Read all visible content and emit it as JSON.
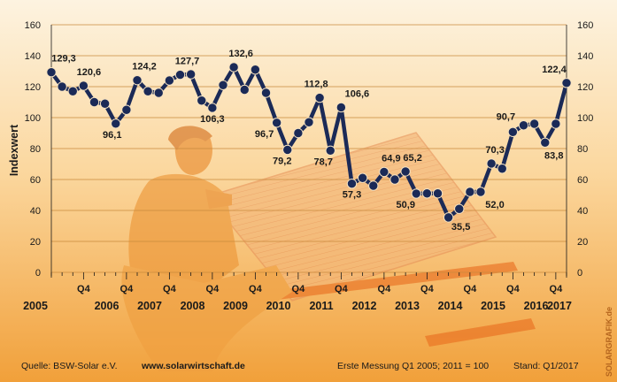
{
  "chart_data": {
    "type": "line",
    "title": "",
    "ylabel": "Indexwert",
    "ylim": [
      0,
      160
    ],
    "yticks": [
      0,
      20,
      40,
      60,
      80,
      100,
      120,
      140,
      160
    ],
    "grid": true,
    "quarter_label": "Q4",
    "years": [
      "2005",
      "2006",
      "2007",
      "2008",
      "2009",
      "2010",
      "2011",
      "2012",
      "2013",
      "2014",
      "2015",
      "2016",
      "2017"
    ],
    "series": [
      {
        "x": [
          "Q1 2005",
          "Q2 2005",
          "Q3 2005",
          "Q4 2005",
          "Q1 2006",
          "Q2 2006",
          "Q3 2006",
          "Q4 2006",
          "Q1 2007",
          "Q2 2007",
          "Q3 2007",
          "Q4 2007",
          "Q1 2008",
          "Q2 2008",
          "Q3 2008",
          "Q4 2008",
          "Q1 2009",
          "Q2 2009",
          "Q3 2009",
          "Q4 2009",
          "Q1 2010",
          "Q2 2010",
          "Q3 2010",
          "Q4 2010",
          "Q1 2011",
          "Q2 2011",
          "Q3 2011",
          "Q4 2011",
          "Q1 2012",
          "Q2 2012",
          "Q3 2012",
          "Q4 2012",
          "Q1 2013",
          "Q2 2013",
          "Q3 2013",
          "Q4 2013",
          "Q1 2014",
          "Q2 2014",
          "Q3 2014",
          "Q4 2014",
          "Q1 2015",
          "Q2 2015",
          "Q3 2015",
          "Q4 2015",
          "Q1 2016",
          "Q2 2016",
          "Q3 2016",
          "Q4 2016",
          "Q1 2017"
        ],
        "values": [
          129.3,
          120,
          117,
          120.6,
          110,
          109,
          96.1,
          105,
          124.2,
          117,
          116,
          124,
          127.7,
          128,
          111,
          106.3,
          121,
          132.6,
          118,
          131,
          116,
          96.7,
          79.2,
          90,
          97,
          112.8,
          78.7,
          106.6,
          57.3,
          61,
          56,
          64.9,
          60,
          65.2,
          50.9,
          51,
          51,
          35.5,
          41,
          52,
          52,
          70.3,
          67,
          90.7,
          95,
          96,
          83.8,
          96,
          122.4
        ]
      }
    ],
    "data_labels": [
      {
        "index": 0,
        "text": "129,3"
      },
      {
        "index": 3,
        "text": "120,6"
      },
      {
        "index": 6,
        "text": "96,1"
      },
      {
        "index": 8,
        "text": "124,2"
      },
      {
        "index": 12,
        "text": "127,7"
      },
      {
        "index": 15,
        "text": "106,3"
      },
      {
        "index": 17,
        "text": "132,6"
      },
      {
        "index": 21,
        "text": "96,7"
      },
      {
        "index": 22,
        "text": "79,2"
      },
      {
        "index": 25,
        "text": "112,8"
      },
      {
        "index": 26,
        "text": "78,7"
      },
      {
        "index": 27,
        "text": "106,6"
      },
      {
        "index": 28,
        "text": "57,3"
      },
      {
        "index": 31,
        "text": "64,9"
      },
      {
        "index": 33,
        "text": "65,2"
      },
      {
        "index": 34,
        "text": "50,9"
      },
      {
        "index": 37,
        "text": "35,5"
      },
      {
        "index": 41,
        "text": "70,3"
      },
      {
        "index": 43,
        "text": "90,7"
      },
      {
        "index": 40,
        "text": "52,0"
      },
      {
        "index": 46,
        "text": "83,8"
      },
      {
        "index": 48,
        "text": "122,4"
      }
    ]
  },
  "footer": {
    "source": "Quelle: BSW-Solar e.V.",
    "url": "www.solarwirtschaft.de",
    "note": "Erste Messung Q1 2005; 2011 = 100",
    "stand": "Stand: Q1/2017"
  },
  "watermark": "SOLARGRAFIK.de",
  "colors": {
    "line": "#1b2a57",
    "background_top": "#fdf2de",
    "background_bottom": "#f2a23a",
    "grid": "#c98a3c",
    "illustration": "#e9912f"
  }
}
